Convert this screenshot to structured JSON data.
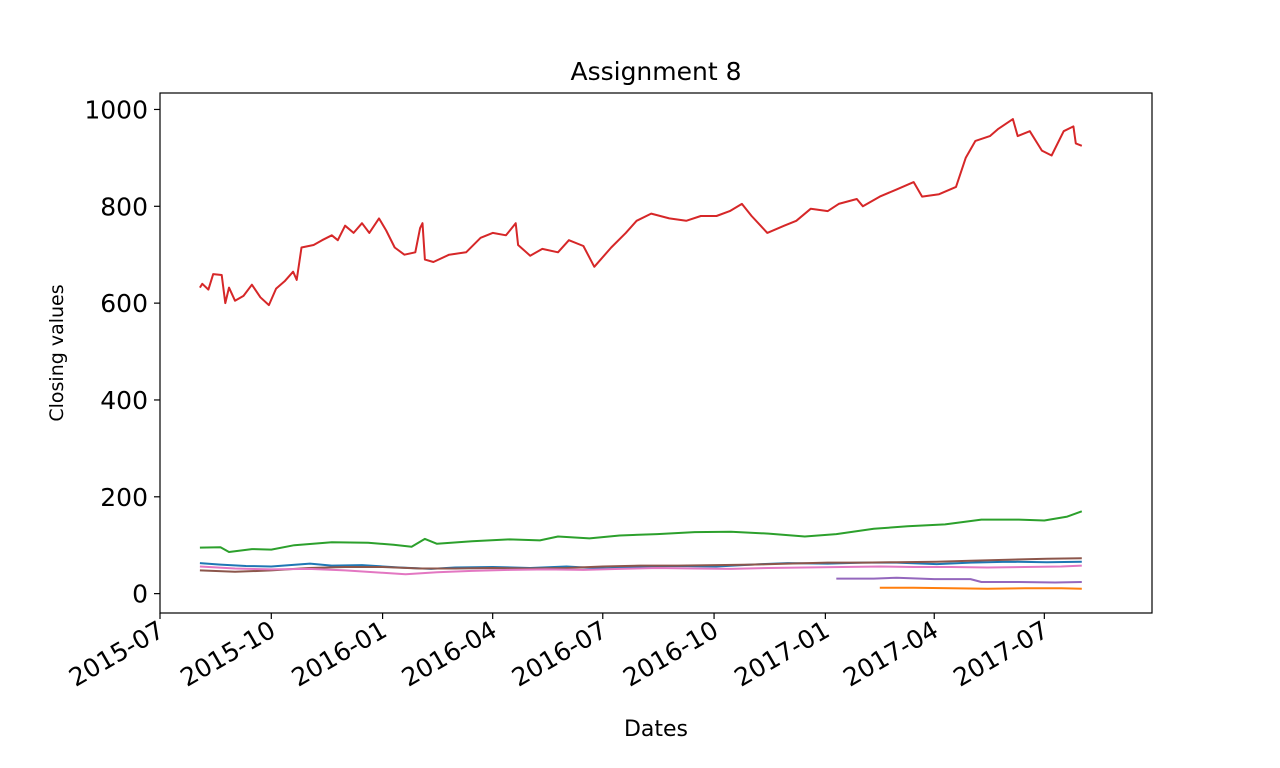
{
  "chart_data": {
    "type": "line",
    "title": "Assignment 8",
    "xlabel": "Dates",
    "ylabel": "Closing values",
    "xlim": [
      "2015-07-01",
      "2017-09-28"
    ],
    "ylim": [
      -40,
      1034
    ],
    "x_ticks": [
      "2015-07",
      "2015-10",
      "2016-01",
      "2016-04",
      "2016-07",
      "2016-10",
      "2017-01",
      "2017-04",
      "2017-07"
    ],
    "y_ticks": [
      0,
      200,
      400,
      600,
      800,
      1000
    ],
    "grid": false,
    "legend": "none",
    "series": [
      {
        "color": "#1f77b4",
        "points": [
          [
            "2015-08-03",
            63
          ],
          [
            "2015-08-20",
            60
          ],
          [
            "2015-09-10",
            57
          ],
          [
            "2015-10-01",
            56
          ],
          [
            "2015-11-02",
            62
          ],
          [
            "2015-11-20",
            58
          ],
          [
            "2015-12-15",
            59
          ],
          [
            "2016-01-15",
            54
          ],
          [
            "2016-02-10",
            51
          ],
          [
            "2016-03-01",
            54
          ],
          [
            "2016-04-01",
            55
          ],
          [
            "2016-05-02",
            53
          ],
          [
            "2016-06-01",
            56
          ],
          [
            "2016-07-01",
            52
          ],
          [
            "2016-08-01",
            56
          ],
          [
            "2016-09-01",
            57
          ],
          [
            "2016-10-03",
            56
          ],
          [
            "2016-11-01",
            60
          ],
          [
            "2016-12-01",
            63
          ],
          [
            "2017-01-03",
            62
          ],
          [
            "2017-02-01",
            64
          ],
          [
            "2017-03-01",
            64
          ],
          [
            "2017-04-03",
            61
          ],
          [
            "2017-05-01",
            64
          ],
          [
            "2017-06-01",
            66
          ],
          [
            "2017-07-03",
            65
          ],
          [
            "2017-08-01",
            66
          ]
        ]
      },
      {
        "color": "#ff7f0e",
        "points": [
          [
            "2017-02-15",
            12
          ],
          [
            "2017-03-15",
            12
          ],
          [
            "2017-04-15",
            11
          ],
          [
            "2017-05-15",
            10
          ],
          [
            "2017-06-15",
            11
          ],
          [
            "2017-07-15",
            11
          ],
          [
            "2017-08-01",
            10
          ]
        ]
      },
      {
        "color": "#2ca02c",
        "points": [
          [
            "2015-08-03",
            95
          ],
          [
            "2015-08-20",
            96
          ],
          [
            "2015-08-27",
            86
          ],
          [
            "2015-09-15",
            92
          ],
          [
            "2015-10-01",
            91
          ],
          [
            "2015-10-20",
            100
          ],
          [
            "2015-11-20",
            106
          ],
          [
            "2015-12-20",
            105
          ],
          [
            "2016-01-10",
            101
          ],
          [
            "2016-01-25",
            97
          ],
          [
            "2016-02-05",
            113
          ],
          [
            "2016-02-15",
            103
          ],
          [
            "2016-03-15",
            108
          ],
          [
            "2016-04-15",
            112
          ],
          [
            "2016-05-10",
            110
          ],
          [
            "2016-05-25",
            118
          ],
          [
            "2016-06-20",
            114
          ],
          [
            "2016-07-15",
            120
          ],
          [
            "2016-08-15",
            123
          ],
          [
            "2016-09-15",
            127
          ],
          [
            "2016-10-15",
            128
          ],
          [
            "2016-11-15",
            124
          ],
          [
            "2016-12-15",
            118
          ],
          [
            "2017-01-10",
            123
          ],
          [
            "2017-02-10",
            134
          ],
          [
            "2017-03-10",
            139
          ],
          [
            "2017-04-10",
            143
          ],
          [
            "2017-05-10",
            153
          ],
          [
            "2017-06-10",
            153
          ],
          [
            "2017-07-01",
            151
          ],
          [
            "2017-07-20",
            159
          ],
          [
            "2017-08-01",
            170
          ]
        ]
      },
      {
        "color": "#d62728",
        "points": [
          [
            "2015-08-03",
            632
          ],
          [
            "2015-08-05",
            640
          ],
          [
            "2015-08-10",
            628
          ],
          [
            "2015-08-14",
            660
          ],
          [
            "2015-08-21",
            658
          ],
          [
            "2015-08-24",
            600
          ],
          [
            "2015-08-27",
            632
          ],
          [
            "2015-09-01",
            605
          ],
          [
            "2015-09-08",
            615
          ],
          [
            "2015-09-15",
            638
          ],
          [
            "2015-09-22",
            612
          ],
          [
            "2015-09-29",
            596
          ],
          [
            "2015-10-05",
            630
          ],
          [
            "2015-10-12",
            645
          ],
          [
            "2015-10-19",
            665
          ],
          [
            "2015-10-22",
            648
          ],
          [
            "2015-10-26",
            715
          ],
          [
            "2015-11-05",
            720
          ],
          [
            "2015-11-12",
            730
          ],
          [
            "2015-11-20",
            740
          ],
          [
            "2015-11-25",
            730
          ],
          [
            "2015-12-01",
            760
          ],
          [
            "2015-12-08",
            745
          ],
          [
            "2015-12-15",
            765
          ],
          [
            "2015-12-21",
            745
          ],
          [
            "2015-12-29",
            775
          ],
          [
            "2016-01-04",
            750
          ],
          [
            "2016-01-11",
            715
          ],
          [
            "2016-01-19",
            700
          ],
          [
            "2016-01-28",
            705
          ],
          [
            "2016-02-01",
            755
          ],
          [
            "2016-02-03",
            765
          ],
          [
            "2016-02-05",
            690
          ],
          [
            "2016-02-12",
            685
          ],
          [
            "2016-02-25",
            700
          ],
          [
            "2016-03-10",
            705
          ],
          [
            "2016-03-22",
            735
          ],
          [
            "2016-04-01",
            745
          ],
          [
            "2016-04-12",
            740
          ],
          [
            "2016-04-20",
            765
          ],
          [
            "2016-04-22",
            720
          ],
          [
            "2016-05-02",
            698
          ],
          [
            "2016-05-12",
            712
          ],
          [
            "2016-05-25",
            705
          ],
          [
            "2016-06-03",
            730
          ],
          [
            "2016-06-15",
            718
          ],
          [
            "2016-06-24",
            675
          ],
          [
            "2016-07-08",
            715
          ],
          [
            "2016-07-20",
            745
          ],
          [
            "2016-07-29",
            770
          ],
          [
            "2016-08-10",
            785
          ],
          [
            "2016-08-25",
            775
          ],
          [
            "2016-09-08",
            770
          ],
          [
            "2016-09-20",
            780
          ],
          [
            "2016-10-03",
            780
          ],
          [
            "2016-10-14",
            790
          ],
          [
            "2016-10-24",
            805
          ],
          [
            "2016-11-01",
            780
          ],
          [
            "2016-11-14",
            745
          ],
          [
            "2016-11-28",
            760
          ],
          [
            "2016-12-08",
            770
          ],
          [
            "2016-12-20",
            795
          ],
          [
            "2017-01-03",
            790
          ],
          [
            "2017-01-12",
            805
          ],
          [
            "2017-01-27",
            815
          ],
          [
            "2017-02-01",
            800
          ],
          [
            "2017-02-15",
            820
          ],
          [
            "2017-03-01",
            835
          ],
          [
            "2017-03-15",
            850
          ],
          [
            "2017-03-22",
            820
          ],
          [
            "2017-04-05",
            825
          ],
          [
            "2017-04-19",
            840
          ],
          [
            "2017-04-27",
            900
          ],
          [
            "2017-05-05",
            935
          ],
          [
            "2017-05-17",
            945
          ],
          [
            "2017-05-24",
            960
          ],
          [
            "2017-06-05",
            980
          ],
          [
            "2017-06-09",
            945
          ],
          [
            "2017-06-19",
            955
          ],
          [
            "2017-06-29",
            915
          ],
          [
            "2017-07-07",
            905
          ],
          [
            "2017-07-17",
            955
          ],
          [
            "2017-07-25",
            965
          ],
          [
            "2017-07-27",
            930
          ],
          [
            "2017-08-01",
            925
          ]
        ]
      },
      {
        "color": "#9467bd",
        "points": [
          [
            "2017-01-10",
            31
          ],
          [
            "2017-02-10",
            31
          ],
          [
            "2017-03-01",
            33
          ],
          [
            "2017-04-01",
            30
          ],
          [
            "2017-05-01",
            30
          ],
          [
            "2017-05-10",
            24
          ],
          [
            "2017-06-10",
            24
          ],
          [
            "2017-07-10",
            23
          ],
          [
            "2017-08-01",
            24
          ]
        ]
      },
      {
        "color": "#8c564b",
        "points": [
          [
            "2015-08-03",
            48
          ],
          [
            "2015-09-01",
            45
          ],
          [
            "2015-10-01",
            48
          ],
          [
            "2015-11-01",
            53
          ],
          [
            "2015-12-01",
            55
          ],
          [
            "2016-01-01",
            55
          ],
          [
            "2016-02-01",
            52
          ],
          [
            "2016-03-01",
            52
          ],
          [
            "2016-04-01",
            53
          ],
          [
            "2016-05-02",
            52
          ],
          [
            "2016-06-01",
            53
          ],
          [
            "2016-07-01",
            56
          ],
          [
            "2016-08-01",
            58
          ],
          [
            "2016-09-01",
            58
          ],
          [
            "2016-10-03",
            59
          ],
          [
            "2016-11-01",
            60
          ],
          [
            "2016-12-01",
            62
          ],
          [
            "2017-01-03",
            64
          ],
          [
            "2017-02-01",
            64
          ],
          [
            "2017-03-01",
            65
          ],
          [
            "2017-04-03",
            66
          ],
          [
            "2017-05-01",
            68
          ],
          [
            "2017-06-01",
            70
          ],
          [
            "2017-07-03",
            72
          ],
          [
            "2017-08-01",
            73
          ]
        ]
      },
      {
        "color": "#e377c2",
        "points": [
          [
            "2015-08-03",
            56
          ],
          [
            "2015-09-01",
            52
          ],
          [
            "2015-10-01",
            50
          ],
          [
            "2015-11-01",
            51
          ],
          [
            "2015-12-01",
            48
          ],
          [
            "2016-01-01",
            43
          ],
          [
            "2016-01-20",
            40
          ],
          [
            "2016-02-15",
            44
          ],
          [
            "2016-03-15",
            47
          ],
          [
            "2016-04-15",
            49
          ],
          [
            "2016-05-15",
            50
          ],
          [
            "2016-06-15",
            49
          ],
          [
            "2016-07-15",
            51
          ],
          [
            "2016-08-15",
            53
          ],
          [
            "2016-09-15",
            52
          ],
          [
            "2016-10-15",
            51
          ],
          [
            "2016-11-15",
            53
          ],
          [
            "2016-12-15",
            54
          ],
          [
            "2017-01-15",
            55
          ],
          [
            "2017-02-15",
            56
          ],
          [
            "2017-03-15",
            55
          ],
          [
            "2017-04-15",
            55
          ],
          [
            "2017-05-15",
            54
          ],
          [
            "2017-06-15",
            55
          ],
          [
            "2017-07-15",
            56
          ],
          [
            "2017-08-01",
            58
          ]
        ]
      }
    ]
  }
}
